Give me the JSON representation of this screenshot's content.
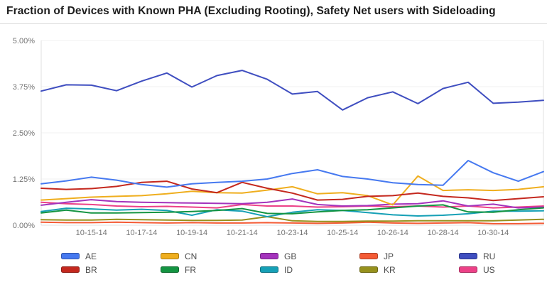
{
  "title": "Fraction of Devices with Known PHA (Excluding Rooting), Safety Net users with Sideloading",
  "chart_data": {
    "type": "line",
    "title": "Fraction of Devices with Known PHA (Excluding Rooting), Safety Net users with Sideloading",
    "xlabel": "",
    "ylabel": "",
    "ylim": [
      0,
      5
    ],
    "y_unit": "%",
    "grid": "horizontal-light",
    "legend_position": "bottom",
    "num_points": 21,
    "x_tick_labels": [
      "10-15-14",
      "10-17-14",
      "10-19-14",
      "10-21-14",
      "10-23-14",
      "10-25-14",
      "10-26-14",
      "10-28-14",
      "10-30-14"
    ],
    "y_ticks": [
      {
        "value": 0,
        "label": "0.00%"
      },
      {
        "value": 1.25,
        "label": "1.25%"
      },
      {
        "value": 2.5,
        "label": "2.50%"
      },
      {
        "value": 3.75,
        "label": "3.75%"
      },
      {
        "value": 5,
        "label": "5.00%"
      }
    ],
    "series": [
      {
        "name": "AE",
        "color": "#4679F0",
        "values": [
          1.12,
          1.2,
          1.3,
          1.22,
          1.1,
          1.03,
          1.12,
          1.16,
          1.19,
          1.25,
          1.4,
          1.5,
          1.32,
          1.25,
          1.15,
          1.1,
          1.08,
          1.75,
          1.42,
          1.19,
          1.45
        ]
      },
      {
        "name": "BR",
        "color": "#C4281E",
        "values": [
          1.0,
          0.97,
          0.99,
          1.05,
          1.16,
          1.19,
          0.98,
          0.88,
          1.16,
          1.0,
          0.87,
          0.68,
          0.7,
          0.78,
          0.8,
          0.87,
          0.78,
          0.74,
          0.67,
          0.72,
          0.77
        ]
      },
      {
        "name": "CN",
        "color": "#EFAE1E",
        "values": [
          0.68,
          0.72,
          0.76,
          0.78,
          0.8,
          0.85,
          0.92,
          0.88,
          0.87,
          0.95,
          1.04,
          0.85,
          0.88,
          0.8,
          0.55,
          1.33,
          0.94,
          0.96,
          0.94,
          0.97,
          1.04
        ]
      },
      {
        "name": "FR",
        "color": "#149442",
        "values": [
          0.33,
          0.41,
          0.33,
          0.33,
          0.34,
          0.35,
          0.37,
          0.4,
          0.45,
          0.32,
          0.31,
          0.36,
          0.4,
          0.42,
          0.47,
          0.52,
          0.55,
          0.36,
          0.35,
          0.42,
          0.47
        ]
      },
      {
        "name": "GB",
        "color": "#A433BC",
        "values": [
          0.54,
          0.62,
          0.69,
          0.64,
          0.62,
          0.61,
          0.6,
          0.59,
          0.58,
          0.62,
          0.71,
          0.56,
          0.52,
          0.53,
          0.57,
          0.58,
          0.66,
          0.52,
          0.57,
          0.47,
          0.49
        ]
      },
      {
        "name": "ID",
        "color": "#16A0B6",
        "values": [
          0.37,
          0.46,
          0.44,
          0.41,
          0.43,
          0.4,
          0.27,
          0.42,
          0.38,
          0.23,
          0.35,
          0.42,
          0.4,
          0.34,
          0.28,
          0.25,
          0.27,
          0.31,
          0.38,
          0.38,
          0.39
        ]
      },
      {
        "name": "JP",
        "color": "#F45B35",
        "values": [
          0.08,
          0.07,
          0.07,
          0.08,
          0.07,
          0.06,
          0.07,
          0.06,
          0.06,
          0.07,
          0.06,
          0.05,
          0.06,
          0.08,
          0.06,
          0.05,
          0.06,
          0.07,
          0.04,
          0.04,
          0.05
        ]
      },
      {
        "name": "KR",
        "color": "#96911D",
        "values": [
          0.15,
          0.14,
          0.14,
          0.16,
          0.15,
          0.14,
          0.13,
          0.13,
          0.14,
          0.23,
          0.12,
          0.1,
          0.1,
          0.11,
          0.11,
          0.12,
          0.12,
          0.12,
          0.12,
          0.14,
          0.16
        ]
      },
      {
        "name": "RU",
        "color": "#3F4EC0",
        "values": [
          3.63,
          3.8,
          3.79,
          3.64,
          3.9,
          4.12,
          3.74,
          4.05,
          4.19,
          3.95,
          3.55,
          3.62,
          3.12,
          3.45,
          3.61,
          3.29,
          3.7,
          3.87,
          3.3,
          3.33,
          3.38
        ]
      },
      {
        "name": "US",
        "color": "#EC4187",
        "values": [
          0.62,
          0.58,
          0.56,
          0.52,
          0.5,
          0.51,
          0.49,
          0.47,
          0.56,
          0.52,
          0.52,
          0.49,
          0.5,
          0.52,
          0.5,
          0.52,
          0.49,
          0.52,
          0.47,
          0.49,
          0.52
        ]
      }
    ]
  },
  "colors": {
    "grid_line": "#f2f2f2",
    "axis_line": "#e0e0e0",
    "tick_text": "#757575",
    "title_text": "#1c1c1c"
  }
}
